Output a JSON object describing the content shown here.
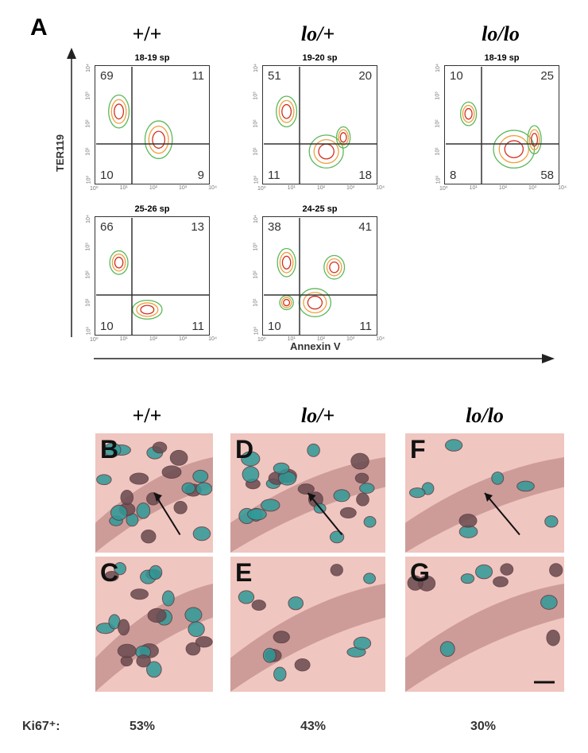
{
  "panel_a_label": "A",
  "genotypes": [
    "+/+",
    "lo/+",
    "lo/lo"
  ],
  "y_axis_label": "TER119",
  "x_axis_label": "Annexin V",
  "x_ticks": [
    "10⁰",
    "10¹",
    "10²",
    "10³",
    "10⁴"
  ],
  "y_ticks": [
    "10⁰",
    "10¹",
    "10²",
    "10³",
    "10⁴"
  ],
  "flow_plots": [
    {
      "genotype": "+/+",
      "title": "18-19 sp",
      "quadrants": {
        "ul": "69",
        "ur": "11",
        "ll": "10",
        "lr": "9"
      }
    },
    {
      "genotype": "lo/+",
      "title": "19-20 sp",
      "quadrants": {
        "ul": "51",
        "ur": "20",
        "ll": "11",
        "lr": "18"
      }
    },
    {
      "genotype": "lo/lo",
      "title": "18-19 sp",
      "quadrants": {
        "ul": "10",
        "ur": "25",
        "ll": "8",
        "lr": "58"
      }
    },
    {
      "genotype": "+/+",
      "title": "25-26 sp",
      "quadrants": {
        "ul": "66",
        "ur": "13",
        "ll": "10",
        "lr": "11"
      }
    },
    {
      "genotype": "lo/+",
      "title": "24-25 sp",
      "quadrants": {
        "ul": "38",
        "ur": "41",
        "ll": "10",
        "lr": "11"
      }
    }
  ],
  "histology_panels": [
    "B",
    "C",
    "D",
    "E",
    "F",
    "G"
  ],
  "ki67_label": "Ki67⁺:",
  "ki67_values": [
    "53%",
    "43%",
    "30%"
  ],
  "colors": {
    "contour_outer": "#5cb85c",
    "contour_mid": "#f0a040",
    "contour_inner": "#d03020",
    "stain": "#2f9a98",
    "tissue": "#f0c6c0"
  }
}
